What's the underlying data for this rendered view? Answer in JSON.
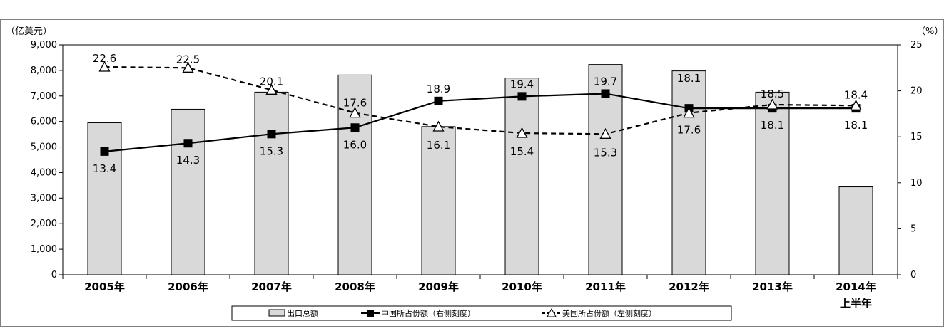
{
  "chart_data": {
    "type": "bar",
    "left_axis_unit": "（亿美元）",
    "right_axis_unit": "（%）",
    "categories": [
      [
        "2005年"
      ],
      [
        "2006年"
      ],
      [
        "2007年"
      ],
      [
        "2008年"
      ],
      [
        "2009年"
      ],
      [
        "2010年"
      ],
      [
        "2011年"
      ],
      [
        "2012年"
      ],
      [
        "2013年"
      ],
      [
        "2014年",
        "上半年"
      ]
    ],
    "left_axis": {
      "ylim": [
        0,
        9000
      ],
      "ticks": [
        "0",
        "1,000",
        "2,000",
        "3,000",
        "4,000",
        "5,000",
        "6,000",
        "7,000",
        "8,000",
        "9,000"
      ]
    },
    "right_axis": {
      "ylim": [
        0,
        25
      ],
      "ticks": [
        "0",
        "5",
        "10",
        "15",
        "20",
        "25"
      ]
    },
    "grid": false,
    "legend_position": "bottom",
    "series": [
      {
        "name": "出口总额",
        "type": "bar",
        "axis": "left",
        "color": "#d9d9d9",
        "values": [
          5950,
          6480,
          7150,
          7820,
          5800,
          7700,
          8230,
          7980,
          7150,
          3440
        ]
      },
      {
        "name": "中国所占份额（右侧刻度）",
        "type": "line",
        "axis": "right",
        "marker": "square",
        "color": "#000000",
        "values": [
          13.4,
          14.3,
          15.3,
          16.0,
          18.9,
          19.4,
          19.7,
          18.1,
          18.1,
          18.1
        ],
        "labels": [
          "13.4",
          "14.3",
          "15.3",
          "16.0",
          "18.9",
          "19.4",
          "19.7",
          "18.1",
          "18.1",
          "18.1"
        ]
      },
      {
        "name": "美国所占份额（左侧刻度）",
        "type": "line",
        "axis": "right",
        "marker": "triangle",
        "dashed": true,
        "color": "#000000",
        "values": [
          22.6,
          22.5,
          20.1,
          17.6,
          16.1,
          15.4,
          15.3,
          17.6,
          18.5,
          18.4
        ],
        "labels": [
          "22.6",
          "22.5",
          "20.1",
          "17.6",
          "16.1",
          "15.4",
          "15.3",
          "17.6",
          "18.5",
          "18.4"
        ]
      }
    ]
  }
}
